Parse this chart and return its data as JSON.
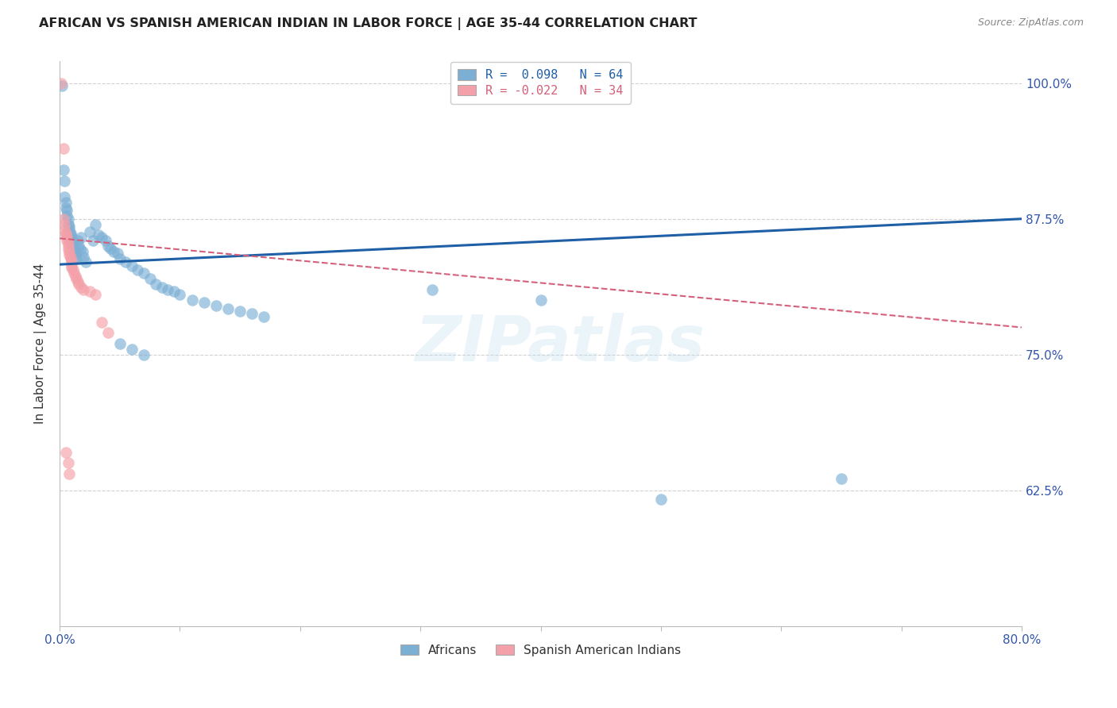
{
  "title": "AFRICAN VS SPANISH AMERICAN INDIAN IN LABOR FORCE | AGE 35-44 CORRELATION CHART",
  "source": "Source: ZipAtlas.com",
  "ylabel": "In Labor Force | Age 35-44",
  "x_min": 0.0,
  "x_max": 0.8,
  "y_min": 0.5,
  "y_max": 1.02,
  "y_ticks": [
    0.625,
    0.75,
    0.875,
    1.0
  ],
  "y_tick_labels": [
    "62.5%",
    "75.0%",
    "87.5%",
    "100.0%"
  ],
  "legend_blue_label": "Africans",
  "legend_pink_label": "Spanish American Indians",
  "blue_color": "#7BAFD4",
  "pink_color": "#F4A0A8",
  "trendline_blue_color": "#1F5FA6",
  "trendline_pink_color": "#D4607A",
  "watermark_text": "ZIPatlas",
  "background_color": "#FFFFFF",
  "grid_color": "#CCCCCC",
  "blue_trend_x": [
    0.0,
    0.8
  ],
  "blue_trend_y": [
    0.833,
    0.875
  ],
  "pink_trend_x": [
    0.0,
    0.8
  ],
  "pink_trend_y": [
    0.857,
    0.775
  ],
  "blue_scatter": [
    [
      0.002,
      0.998
    ],
    [
      0.003,
      0.92
    ],
    [
      0.004,
      0.91
    ],
    [
      0.004,
      0.895
    ],
    [
      0.005,
      0.89
    ],
    [
      0.005,
      0.885
    ],
    [
      0.006,
      0.883
    ],
    [
      0.006,
      0.878
    ],
    [
      0.007,
      0.875
    ],
    [
      0.007,
      0.87
    ],
    [
      0.008,
      0.868
    ],
    [
      0.008,
      0.865
    ],
    [
      0.009,
      0.862
    ],
    [
      0.009,
      0.86
    ],
    [
      0.01,
      0.858
    ],
    [
      0.01,
      0.855
    ],
    [
      0.011,
      0.852
    ],
    [
      0.011,
      0.85
    ],
    [
      0.012,
      0.848
    ],
    [
      0.012,
      0.845
    ],
    [
      0.013,
      0.843
    ],
    [
      0.013,
      0.84
    ],
    [
      0.014,
      0.838
    ],
    [
      0.015,
      0.855
    ],
    [
      0.016,
      0.85
    ],
    [
      0.017,
      0.847
    ],
    [
      0.018,
      0.858
    ],
    [
      0.019,
      0.845
    ],
    [
      0.02,
      0.84
    ],
    [
      0.022,
      0.835
    ],
    [
      0.025,
      0.863
    ],
    [
      0.028,
      0.855
    ],
    [
      0.03,
      0.87
    ],
    [
      0.032,
      0.86
    ],
    [
      0.035,
      0.858
    ],
    [
      0.038,
      0.855
    ],
    [
      0.04,
      0.85
    ],
    [
      0.042,
      0.848
    ],
    [
      0.045,
      0.845
    ],
    [
      0.048,
      0.843
    ],
    [
      0.05,
      0.838
    ],
    [
      0.055,
      0.835
    ],
    [
      0.06,
      0.832
    ],
    [
      0.065,
      0.828
    ],
    [
      0.07,
      0.825
    ],
    [
      0.075,
      0.82
    ],
    [
      0.08,
      0.815
    ],
    [
      0.085,
      0.812
    ],
    [
      0.09,
      0.81
    ],
    [
      0.095,
      0.808
    ],
    [
      0.1,
      0.805
    ],
    [
      0.11,
      0.8
    ],
    [
      0.12,
      0.798
    ],
    [
      0.13,
      0.795
    ],
    [
      0.14,
      0.792
    ],
    [
      0.15,
      0.79
    ],
    [
      0.16,
      0.788
    ],
    [
      0.17,
      0.785
    ],
    [
      0.05,
      0.76
    ],
    [
      0.06,
      0.755
    ],
    [
      0.07,
      0.75
    ],
    [
      0.31,
      0.81
    ],
    [
      0.4,
      0.8
    ],
    [
      0.5,
      0.617
    ],
    [
      0.65,
      0.636
    ]
  ],
  "pink_scatter": [
    [
      0.001,
      1.0
    ],
    [
      0.003,
      0.94
    ],
    [
      0.003,
      0.875
    ],
    [
      0.004,
      0.87
    ],
    [
      0.004,
      0.865
    ],
    [
      0.005,
      0.862
    ],
    [
      0.005,
      0.86
    ],
    [
      0.006,
      0.858
    ],
    [
      0.006,
      0.855
    ],
    [
      0.007,
      0.853
    ],
    [
      0.007,
      0.85
    ],
    [
      0.007,
      0.847
    ],
    [
      0.008,
      0.845
    ],
    [
      0.008,
      0.842
    ],
    [
      0.009,
      0.84
    ],
    [
      0.009,
      0.838
    ],
    [
      0.01,
      0.835
    ],
    [
      0.01,
      0.832
    ],
    [
      0.01,
      0.83
    ],
    [
      0.011,
      0.828
    ],
    [
      0.012,
      0.825
    ],
    [
      0.013,
      0.822
    ],
    [
      0.014,
      0.82
    ],
    [
      0.015,
      0.817
    ],
    [
      0.016,
      0.815
    ],
    [
      0.018,
      0.812
    ],
    [
      0.02,
      0.81
    ],
    [
      0.025,
      0.808
    ],
    [
      0.03,
      0.805
    ],
    [
      0.035,
      0.78
    ],
    [
      0.04,
      0.77
    ],
    [
      0.005,
      0.66
    ],
    [
      0.007,
      0.65
    ],
    [
      0.008,
      0.64
    ]
  ]
}
